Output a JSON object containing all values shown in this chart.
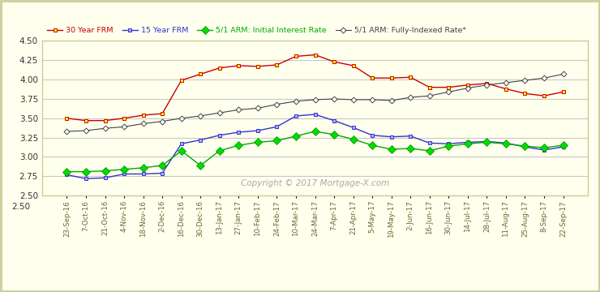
{
  "x_labels": [
    "23-Sep-16",
    "7-Oct-16",
    "21-Oct-16",
    "4-Nov-16",
    "18-Nov-16",
    "2-Dec-16",
    "16-Dec-16",
    "30-Dec-16",
    "13-Jan-17",
    "27-Jan-17",
    "10-Feb-17",
    "24-Feb-17",
    "10-Mar-17",
    "24-Mar-17",
    "7-Apr-17",
    "21-Apr-17",
    "5-May-17",
    "19-May-17",
    "2-Jun-17",
    "16-Jun-17",
    "30-Jun-17",
    "14-Jul-17",
    "28-Jul-17",
    "11-Aug-17",
    "25-Aug-17",
    "8-Sep-17",
    "22-Sep-17"
  ],
  "frm30": [
    3.5,
    3.47,
    3.47,
    3.5,
    3.54,
    3.56,
    3.99,
    4.07,
    4.15,
    4.18,
    4.17,
    4.19,
    4.3,
    4.32,
    4.23,
    4.18,
    4.02,
    4.02,
    4.03,
    3.9,
    3.9,
    3.93,
    3.95,
    3.88,
    3.82,
    3.79,
    3.84
  ],
  "frm15": [
    2.77,
    2.72,
    2.73,
    2.78,
    2.78,
    2.79,
    3.17,
    3.22,
    3.28,
    3.32,
    3.34,
    3.39,
    3.53,
    3.55,
    3.47,
    3.38,
    3.28,
    3.26,
    3.27,
    3.18,
    3.17,
    3.19,
    3.2,
    3.18,
    3.13,
    3.09,
    3.13
  ],
  "arm_initial": [
    2.81,
    2.81,
    2.82,
    2.84,
    2.86,
    2.89,
    3.08,
    2.89,
    3.08,
    3.15,
    3.19,
    3.21,
    3.27,
    3.33,
    3.29,
    3.23,
    3.15,
    3.1,
    3.11,
    3.08,
    3.14,
    3.17,
    3.19,
    3.17,
    3.14,
    3.12,
    3.15
  ],
  "arm_fully": [
    3.33,
    3.34,
    3.37,
    3.39,
    3.43,
    3.46,
    3.5,
    3.53,
    3.57,
    3.61,
    3.63,
    3.68,
    3.72,
    3.74,
    3.75,
    3.74,
    3.74,
    3.73,
    3.77,
    3.79,
    3.84,
    3.89,
    3.93,
    3.96,
    3.99,
    4.02,
    4.07
  ],
  "frm30_color": "#cc0000",
  "frm15_color": "#3333cc",
  "arm_initial_color": "#00aa00",
  "arm_fully_color": "#444444",
  "background_color": "#ffffee",
  "grid_color": "#c8c8c8",
  "border_color": "#cccc99",
  "ylim": [
    2.5,
    4.5
  ],
  "yticks": [
    2.5,
    2.75,
    3.0,
    3.25,
    3.5,
    3.75,
    4.0,
    4.25,
    4.5
  ],
  "copyright_text": "Copyright © 2017 Mortgage-X.com",
  "legend_labels": [
    "30 Year FRM",
    "15 Year FRM",
    "5/1 ARM: Initial Interest Rate",
    "5/1 ARM: Fully-Indexed Rate*"
  ]
}
